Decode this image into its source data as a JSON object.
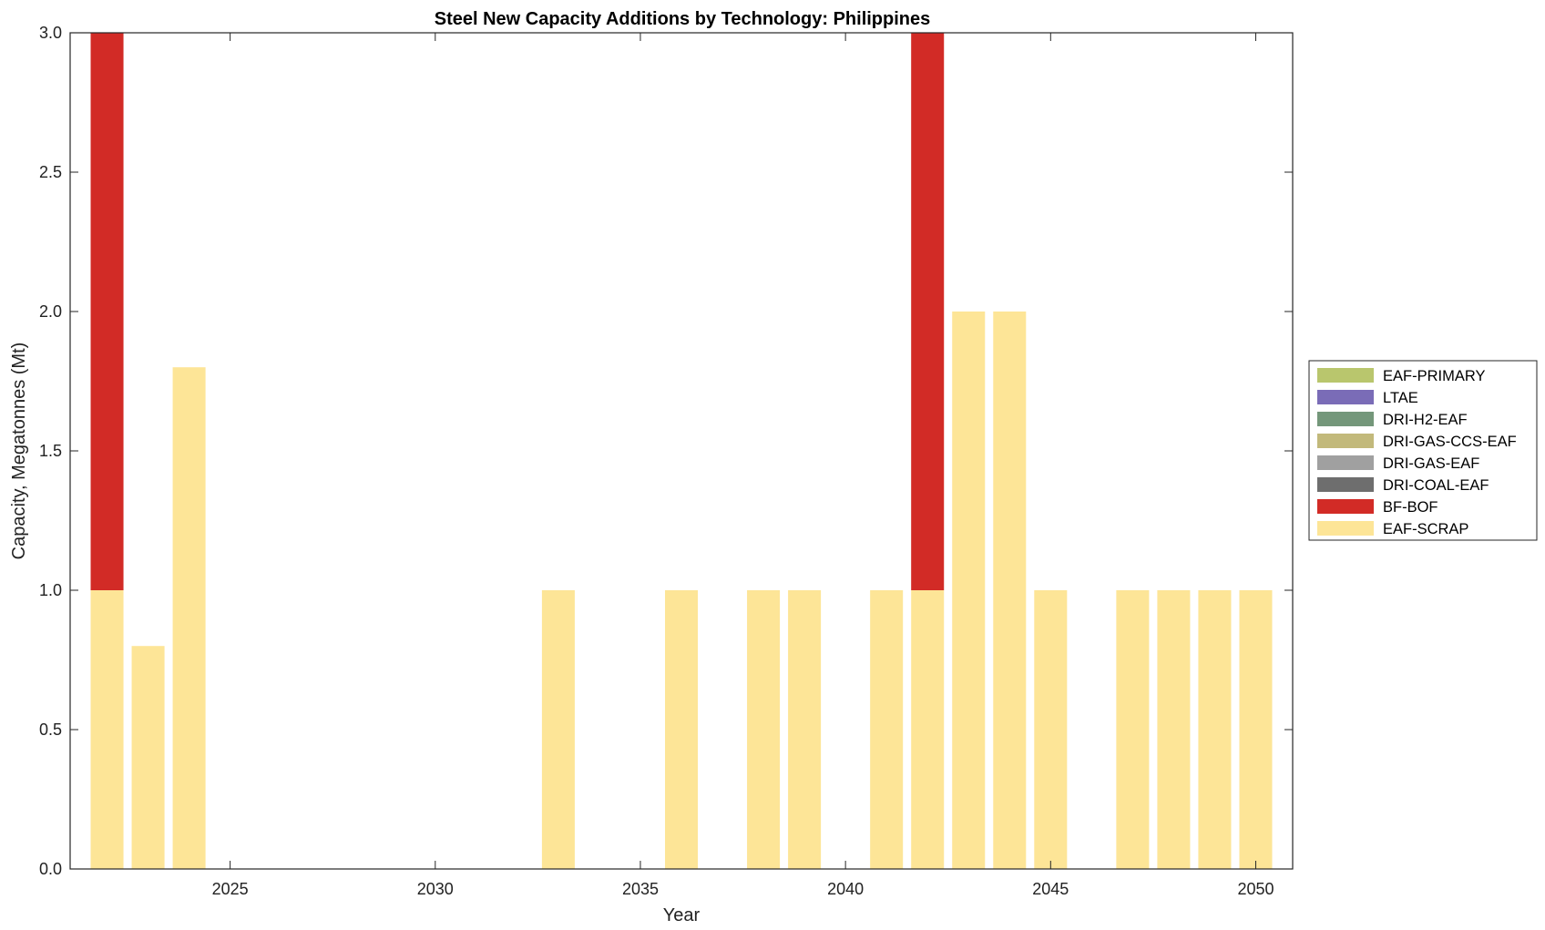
{
  "chart_data": {
    "type": "bar",
    "stacked": true,
    "title": "Steel New Capacity Additions by Technology: Philippines",
    "xlabel": "Year",
    "ylabel": "Capacity, Megatonnes (Mt)",
    "xlim": [
      2021.1,
      2050.9
    ],
    "ylim": [
      0,
      3
    ],
    "xticks": [
      2025,
      2030,
      2035,
      2040,
      2045,
      2050
    ],
    "xtick_labels": [
      "2025",
      "2030",
      "2035",
      "2040",
      "2045",
      "2050"
    ],
    "yticks": [
      0,
      0.5,
      1,
      1.5,
      2,
      2.5,
      3
    ],
    "ytick_labels": [
      "0.0",
      "0.5",
      "1.0",
      "1.5",
      "2.0",
      "2.5",
      "3.0"
    ],
    "legend_position": "outside-right",
    "x": [
      2022,
      2023,
      2024,
      2025,
      2026,
      2027,
      2028,
      2029,
      2030,
      2031,
      2032,
      2033,
      2034,
      2035,
      2036,
      2037,
      2038,
      2039,
      2040,
      2041,
      2042,
      2043,
      2044,
      2045,
      2046,
      2047,
      2048,
      2049,
      2050
    ],
    "series": [
      {
        "name": "EAF-SCRAP",
        "color": "#fde597",
        "values": [
          1,
          0.8,
          1.8,
          0,
          0,
          0,
          0,
          0,
          0,
          0,
          0,
          1,
          0,
          0,
          1,
          0,
          1,
          1,
          0,
          1,
          1,
          2,
          2,
          1,
          0,
          1,
          1,
          1,
          1
        ]
      },
      {
        "name": "BF-BOF",
        "color": "#d22b26",
        "values": [
          2,
          0,
          0,
          0,
          0,
          0,
          0,
          0,
          0,
          0,
          0,
          0,
          0,
          0,
          0,
          0,
          0,
          0,
          0,
          0,
          2,
          0,
          0,
          0,
          0,
          0,
          0,
          0,
          0
        ]
      },
      {
        "name": "DRI-COAL-EAF",
        "color": "#6e6e6e",
        "values": [
          0,
          0,
          0,
          0,
          0,
          0,
          0,
          0,
          0,
          0,
          0,
          0,
          0,
          0,
          0,
          0,
          0,
          0,
          0,
          0,
          0,
          0,
          0,
          0,
          0,
          0,
          0,
          0,
          0
        ]
      },
      {
        "name": "DRI-GAS-EAF",
        "color": "#a0a0a0",
        "values": [
          0,
          0,
          0,
          0,
          0,
          0,
          0,
          0,
          0,
          0,
          0,
          0,
          0,
          0,
          0,
          0,
          0,
          0,
          0,
          0,
          0,
          0,
          0,
          0,
          0,
          0,
          0,
          0,
          0
        ]
      },
      {
        "name": "DRI-GAS-CCS-EAF",
        "color": "#c2b97b",
        "values": [
          0,
          0,
          0,
          0,
          0,
          0,
          0,
          0,
          0,
          0,
          0,
          0,
          0,
          0,
          0,
          0,
          0,
          0,
          0,
          0,
          0,
          0,
          0,
          0,
          0,
          0,
          0,
          0,
          0
        ]
      },
      {
        "name": "DRI-H2-EAF",
        "color": "#74977a",
        "values": [
          0,
          0,
          0,
          0,
          0,
          0,
          0,
          0,
          0,
          0,
          0,
          0,
          0,
          0,
          0,
          0,
          0,
          0,
          0,
          0,
          0,
          0,
          0,
          0,
          0,
          0,
          0,
          0,
          0
        ]
      },
      {
        "name": "LTAE",
        "color": "#7a6cb7",
        "values": [
          0,
          0,
          0,
          0,
          0,
          0,
          0,
          0,
          0,
          0,
          0,
          0,
          0,
          0,
          0,
          0,
          0,
          0,
          0,
          0,
          0,
          0,
          0,
          0,
          0,
          0,
          0,
          0,
          0
        ]
      },
      {
        "name": "EAF-PRIMARY",
        "color": "#b9c66d",
        "values": [
          0,
          0,
          0,
          0,
          0,
          0,
          0,
          0,
          0,
          0,
          0,
          0,
          0,
          0,
          0,
          0,
          0,
          0,
          0,
          0,
          0,
          0,
          0,
          0,
          0,
          0,
          0,
          0,
          0
        ]
      }
    ]
  }
}
